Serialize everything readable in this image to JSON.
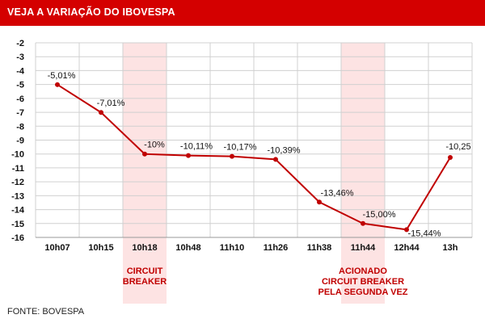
{
  "header": {
    "title": "VEJA A VARIAÇÃO DO IBOVESPA"
  },
  "footer": {
    "source": "FONTE: BOVESPA"
  },
  "colors": {
    "header_bg": "#d40000",
    "line": "#c00000",
    "highlight_band": "#fde3e3",
    "annotation": "#c00000",
    "grid": "#d0d0d0"
  },
  "chart_data": {
    "type": "line",
    "title": "",
    "xlabel": "",
    "ylabel": "",
    "categories": [
      "10h07",
      "10h15",
      "10h18",
      "10h48",
      "11h10",
      "11h26",
      "11h38",
      "11h44",
      "12h44",
      "13h"
    ],
    "series": [
      {
        "values": [
          -5.01,
          -7.01,
          -10,
          -10.11,
          -10.17,
          -10.39,
          -13.46,
          -15.0,
          -15.44,
          -10.25
        ]
      }
    ],
    "data_labels": [
      "-5,01%",
      "-7,01%",
      "-10%",
      "-10,11%",
      "-10,17%",
      "-10,39%",
      "-13,46%",
      "-15,00%",
      "-15,44%",
      "-10,25"
    ],
    "ylim": [
      -16,
      -2
    ],
    "yticks": [
      -2,
      -3,
      -4,
      -5,
      -6,
      -7,
      -8,
      -9,
      -10,
      -11,
      -12,
      -13,
      -14,
      -15,
      -16
    ],
    "grid": true,
    "highlighted_categories": [
      "10h18",
      "11h44"
    ],
    "annotations": [
      {
        "category": "10h18",
        "lines": [
          "CIRCUIT",
          "BREAKER"
        ]
      },
      {
        "category": "11h44",
        "lines": [
          "ACIONADO",
          "CIRCUIT BREAKER",
          "PELA SEGUNDA VEZ"
        ]
      }
    ]
  }
}
